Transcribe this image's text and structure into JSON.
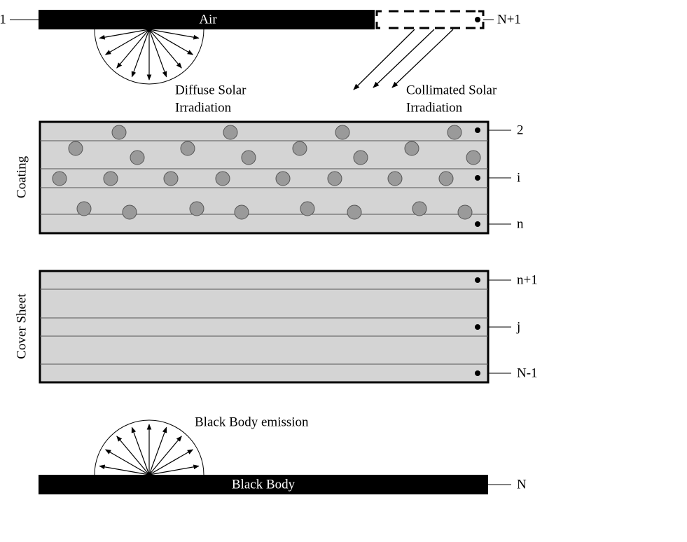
{
  "top": {
    "air": "Air",
    "left_label": "1",
    "right_label": "N+1"
  },
  "diffuse": {
    "line1": "Diffuse Solar",
    "line2": "Irradiation"
  },
  "collimated": {
    "line1": "Collimated Solar",
    "line2": "Irradiation"
  },
  "coating": {
    "title": "Coating",
    "labels": [
      "2",
      "i",
      "n"
    ]
  },
  "cover": {
    "title": "Cover Sheet",
    "labels": [
      "n+1",
      "j",
      "N-1"
    ]
  },
  "bottom": {
    "emission": "Black Body emission",
    "body": "Black Body",
    "right_label": "N"
  }
}
